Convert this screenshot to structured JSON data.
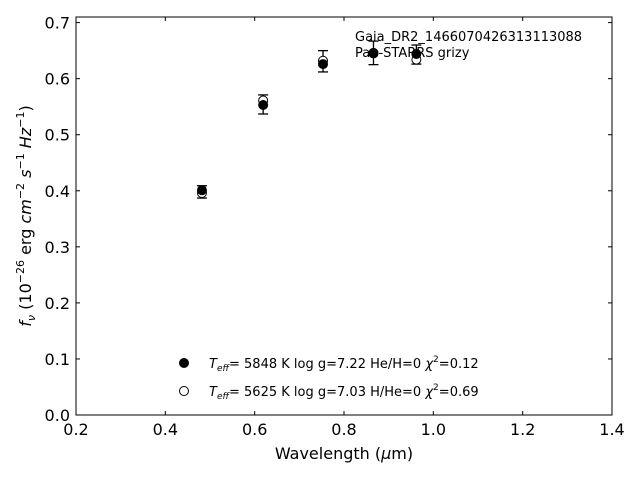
{
  "chart_data": {
    "type": "scatter",
    "title": "",
    "xlabel": "Wavelength",
    "xlabel_unit": "μm",
    "ylabel": "f_ν (10^-26 erg cm^-2 s^-1 Hz^-1)",
    "xlim": [
      0.2,
      1.4
    ],
    "ylim": [
      0.0,
      0.71
    ],
    "xticks": [
      "0.2",
      "0.4",
      "0.6",
      "0.8",
      "1.0",
      "1.2",
      "1.4"
    ],
    "xtick_values": [
      0.2,
      0.4,
      0.6,
      0.8,
      1.0,
      1.2,
      1.4
    ],
    "yticks": [
      "0.0",
      "0.1",
      "0.2",
      "0.3",
      "0.4",
      "0.5",
      "0.6",
      "0.7"
    ],
    "ytick_values": [
      0.0,
      0.1,
      0.2,
      0.3,
      0.4,
      0.5,
      0.6,
      0.7
    ],
    "grid": false,
    "legend_position": "bottom-center",
    "annotation": [
      "Gaia_DR2_1466070426313113088",
      "Pan-STARRS grizy"
    ],
    "observed": {
      "x": [
        0.482,
        0.619,
        0.753,
        0.866,
        0.962
      ],
      "y": [
        0.398,
        0.554,
        0.631,
        0.646,
        0.643
      ],
      "yerr": [
        0.011,
        0.017,
        0.019,
        0.021,
        0.017
      ]
    },
    "series": [
      {
        "marker": "filled",
        "label": {
          "teff": "5848",
          "logg": "7.22",
          "comp": "He/H=0",
          "chi2": "0.12"
        },
        "x": [
          0.482,
          0.619,
          0.753,
          0.866,
          0.962
        ],
        "y": [
          0.401,
          0.553,
          0.626,
          0.646,
          0.644
        ]
      },
      {
        "marker": "open",
        "label": {
          "teff": "5625",
          "logg": "7.03",
          "comp": "H/He=0",
          "chi2": "0.69"
        },
        "x": [
          0.482,
          0.619,
          0.753,
          0.866,
          0.962
        ],
        "y": [
          0.396,
          0.561,
          0.632,
          0.645,
          0.634
        ]
      }
    ]
  }
}
